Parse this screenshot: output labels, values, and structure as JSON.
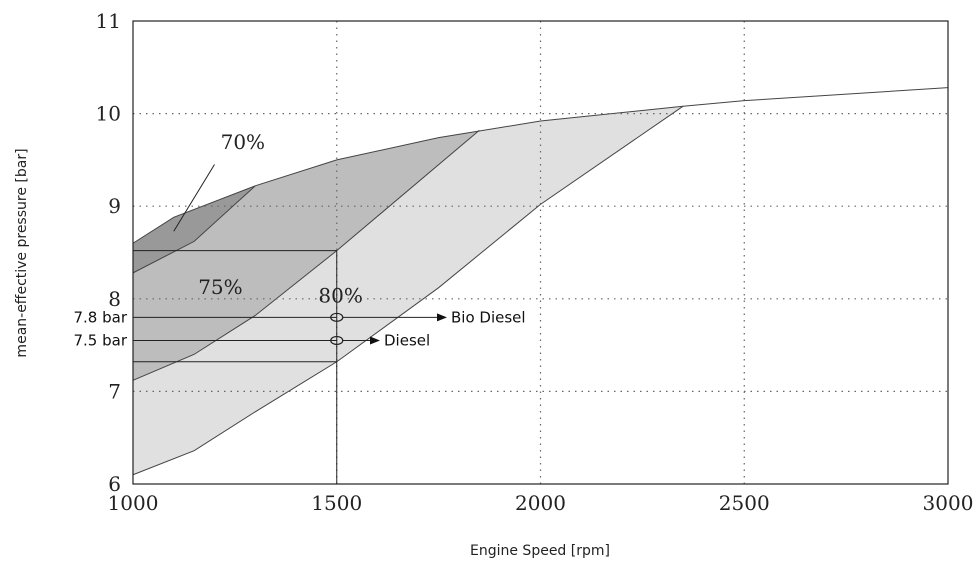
{
  "chart_data": {
    "type": "area",
    "title": "",
    "xlabel": "Engine Speed [rpm]",
    "ylabel": "mean-effective pressure [bar]",
    "xlim": [
      1000,
      3000
    ],
    "ylim": [
      6,
      11
    ],
    "xticks": [
      1000,
      1500,
      2000,
      2500,
      3000
    ],
    "yticks": [
      6,
      7,
      8,
      9,
      10,
      11
    ],
    "grid": "dotted",
    "upper_curve": {
      "x": [
        1000,
        1100,
        1300,
        1500,
        1750,
        2000,
        2350,
        2500,
        3000
      ],
      "y": [
        8.6,
        8.88,
        9.22,
        9.5,
        9.74,
        9.92,
        10.08,
        10.14,
        10.28
      ]
    },
    "regions": [
      {
        "label": "70%",
        "color": "#999999",
        "lower_boundary": {
          "x": [
            1000,
            1150,
            1300
          ],
          "y": [
            8.28,
            8.62,
            9.22
          ]
        }
      },
      {
        "label": "75%",
        "color": "#bdbdbd",
        "lower_boundary": {
          "x": [
            1000,
            1150,
            1300,
            1500,
            1850
          ],
          "y": [
            7.12,
            7.4,
            7.82,
            8.52,
            9.82
          ]
        }
      },
      {
        "label": "80%",
        "color": "#e0e0e0",
        "lower_boundary": {
          "x": [
            1000,
            1150,
            1300,
            1500,
            1750,
            2000,
            2350
          ],
          "y": [
            6.1,
            6.36,
            6.78,
            7.32,
            8.12,
            9.02,
            10.08
          ]
        }
      }
    ],
    "operating_point_box": {
      "x": [
        1000,
        1500
      ],
      "y": [
        6,
        8.52
      ]
    },
    "reference_lines": [
      7.32
    ],
    "annotations": [
      {
        "label": "7.8 bar",
        "value": 7.8,
        "arrow_to": "Bio Diesel",
        "x": 1500
      },
      {
        "label": "7.5 bar",
        "value": 7.55,
        "arrow_to": "Diesel",
        "x": 1500
      }
    ]
  }
}
